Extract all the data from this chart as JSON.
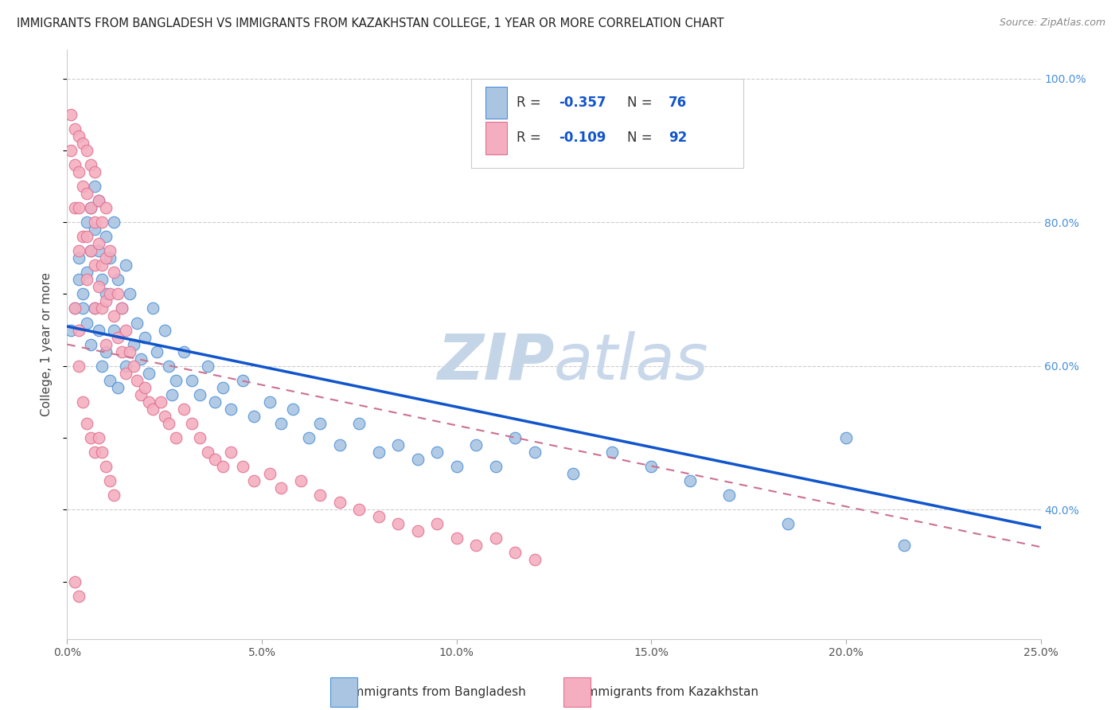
{
  "title": "IMMIGRANTS FROM BANGLADESH VS IMMIGRANTS FROM KAZAKHSTAN COLLEGE, 1 YEAR OR MORE CORRELATION CHART",
  "source": "Source: ZipAtlas.com",
  "ylabel_left": "College, 1 year or more",
  "legend_label_blue": "Immigrants from Bangladesh",
  "legend_label_pink": "Immigrants from Kazakhstan",
  "xlim": [
    0.0,
    0.25
  ],
  "ylim": [
    0.22,
    1.04
  ],
  "color_blue_fill": "#aac5e2",
  "color_blue_edge": "#4a90d9",
  "color_blue_line": "#1155cc",
  "color_pink_fill": "#f4aec0",
  "color_pink_edge": "#e07090",
  "color_pink_line": "#cc7090",
  "color_grid": "#cccccc",
  "color_right_axis": "#4a90d9",
  "watermark_color": "#d0dff0",
  "bangladesh_x": [
    0.001,
    0.002,
    0.003,
    0.003,
    0.004,
    0.004,
    0.005,
    0.005,
    0.005,
    0.006,
    0.006,
    0.006,
    0.007,
    0.007,
    0.007,
    0.008,
    0.008,
    0.008,
    0.009,
    0.009,
    0.01,
    0.01,
    0.01,
    0.011,
    0.011,
    0.012,
    0.012,
    0.013,
    0.013,
    0.014,
    0.015,
    0.015,
    0.016,
    0.017,
    0.018,
    0.019,
    0.02,
    0.021,
    0.022,
    0.023,
    0.025,
    0.026,
    0.027,
    0.028,
    0.03,
    0.032,
    0.034,
    0.036,
    0.038,
    0.04,
    0.042,
    0.045,
    0.048,
    0.052,
    0.055,
    0.058,
    0.062,
    0.065,
    0.07,
    0.075,
    0.08,
    0.085,
    0.09,
    0.095,
    0.1,
    0.105,
    0.11,
    0.115,
    0.12,
    0.13,
    0.14,
    0.15,
    0.16,
    0.17,
    0.185,
    0.2,
    0.215
  ],
  "bangladesh_y": [
    0.65,
    0.68,
    0.72,
    0.75,
    0.7,
    0.68,
    0.8,
    0.73,
    0.66,
    0.82,
    0.76,
    0.63,
    0.85,
    0.79,
    0.68,
    0.83,
    0.76,
    0.65,
    0.72,
    0.6,
    0.78,
    0.7,
    0.62,
    0.75,
    0.58,
    0.8,
    0.65,
    0.72,
    0.57,
    0.68,
    0.74,
    0.6,
    0.7,
    0.63,
    0.66,
    0.61,
    0.64,
    0.59,
    0.68,
    0.62,
    0.65,
    0.6,
    0.56,
    0.58,
    0.62,
    0.58,
    0.56,
    0.6,
    0.55,
    0.57,
    0.54,
    0.58,
    0.53,
    0.55,
    0.52,
    0.54,
    0.5,
    0.52,
    0.49,
    0.52,
    0.48,
    0.49,
    0.47,
    0.48,
    0.46,
    0.49,
    0.46,
    0.5,
    0.48,
    0.45,
    0.48,
    0.46,
    0.44,
    0.42,
    0.38,
    0.5,
    0.35
  ],
  "kazakhstan_x": [
    0.001,
    0.001,
    0.002,
    0.002,
    0.002,
    0.003,
    0.003,
    0.003,
    0.003,
    0.004,
    0.004,
    0.004,
    0.005,
    0.005,
    0.005,
    0.005,
    0.006,
    0.006,
    0.006,
    0.007,
    0.007,
    0.007,
    0.007,
    0.008,
    0.008,
    0.008,
    0.009,
    0.009,
    0.009,
    0.01,
    0.01,
    0.01,
    0.01,
    0.011,
    0.011,
    0.012,
    0.012,
    0.013,
    0.013,
    0.014,
    0.014,
    0.015,
    0.015,
    0.016,
    0.017,
    0.018,
    0.019,
    0.02,
    0.021,
    0.022,
    0.024,
    0.025,
    0.026,
    0.028,
    0.03,
    0.032,
    0.034,
    0.036,
    0.038,
    0.04,
    0.042,
    0.045,
    0.048,
    0.052,
    0.055,
    0.06,
    0.065,
    0.07,
    0.075,
    0.08,
    0.085,
    0.09,
    0.095,
    0.1,
    0.105,
    0.11,
    0.115,
    0.12,
    0.002,
    0.003,
    0.003,
    0.004,
    0.005,
    0.006,
    0.007,
    0.008,
    0.009,
    0.01,
    0.011,
    0.012,
    0.002,
    0.003
  ],
  "kazakhstan_y": [
    0.95,
    0.9,
    0.93,
    0.88,
    0.82,
    0.92,
    0.87,
    0.82,
    0.76,
    0.91,
    0.85,
    0.78,
    0.9,
    0.84,
    0.78,
    0.72,
    0.88,
    0.82,
    0.76,
    0.87,
    0.8,
    0.74,
    0.68,
    0.83,
    0.77,
    0.71,
    0.8,
    0.74,
    0.68,
    0.82,
    0.75,
    0.69,
    0.63,
    0.76,
    0.7,
    0.73,
    0.67,
    0.7,
    0.64,
    0.68,
    0.62,
    0.65,
    0.59,
    0.62,
    0.6,
    0.58,
    0.56,
    0.57,
    0.55,
    0.54,
    0.55,
    0.53,
    0.52,
    0.5,
    0.54,
    0.52,
    0.5,
    0.48,
    0.47,
    0.46,
    0.48,
    0.46,
    0.44,
    0.45,
    0.43,
    0.44,
    0.42,
    0.41,
    0.4,
    0.39,
    0.38,
    0.37,
    0.38,
    0.36,
    0.35,
    0.36,
    0.34,
    0.33,
    0.68,
    0.65,
    0.6,
    0.55,
    0.52,
    0.5,
    0.48,
    0.5,
    0.48,
    0.46,
    0.44,
    0.42,
    0.3,
    0.28
  ],
  "xticks": [
    0.0,
    0.05,
    0.1,
    0.15,
    0.2,
    0.25
  ],
  "xtick_labels": [
    "0.0%",
    "5.0%",
    "10.0%",
    "15.0%",
    "20.0%",
    "25.0%"
  ],
  "yticks_right": [
    0.4,
    0.6,
    0.8,
    1.0
  ],
  "yticks_right_labels": [
    "40.0%",
    "60.0%",
    "80.0%",
    "100.0%"
  ],
  "blue_line_x": [
    0.0,
    0.25
  ],
  "blue_line_y": [
    0.655,
    0.375
  ],
  "pink_line_x": [
    0.0,
    0.25
  ],
  "pink_line_y": [
    0.63,
    0.348
  ]
}
